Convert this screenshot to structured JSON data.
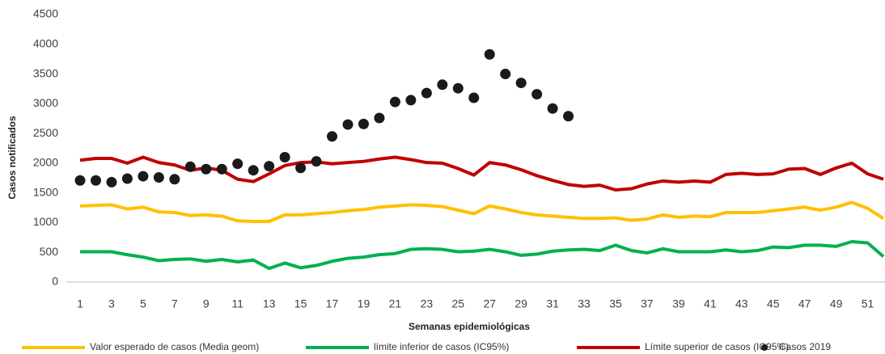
{
  "chart_data": {
    "type": "line",
    "x_label": "Semanas epidemiológicas",
    "y_label": "Casos notificados",
    "x": [
      1,
      2,
      3,
      4,
      5,
      6,
      7,
      8,
      9,
      10,
      11,
      12,
      13,
      14,
      15,
      16,
      17,
      18,
      19,
      20,
      21,
      22,
      23,
      24,
      25,
      26,
      27,
      28,
      29,
      30,
      31,
      32,
      33,
      34,
      35,
      36,
      37,
      38,
      39,
      40,
      41,
      42,
      43,
      44,
      45,
      46,
      47,
      48,
      49,
      50,
      51,
      52
    ],
    "xlim": [
      1,
      52
    ],
    "xticks": [
      1,
      3,
      5,
      7,
      9,
      11,
      13,
      15,
      17,
      19,
      21,
      23,
      25,
      27,
      29,
      31,
      33,
      35,
      37,
      39,
      41,
      43,
      45,
      47,
      49,
      51
    ],
    "ylim": [
      0,
      4500
    ],
    "yticks": [
      0,
      500,
      1000,
      1500,
      2000,
      2500,
      3000,
      3500,
      4000,
      4500
    ],
    "grid": false,
    "legend": "bottom",
    "series": [
      {
        "name": "Valor esperado de casos (Media geom)",
        "color": "#ffc000",
        "marker": "line",
        "values": [
          1280,
          1290,
          1300,
          1230,
          1260,
          1180,
          1170,
          1120,
          1130,
          1110,
          1030,
          1020,
          1020,
          1130,
          1130,
          1150,
          1170,
          1200,
          1220,
          1260,
          1280,
          1300,
          1290,
          1270,
          1210,
          1150,
          1280,
          1230,
          1170,
          1130,
          1110,
          1090,
          1070,
          1070,
          1080,
          1040,
          1060,
          1130,
          1090,
          1110,
          1100,
          1170,
          1170,
          1170,
          1200,
          1230,
          1260,
          1210,
          1260,
          1340,
          1240,
          1070
        ]
      },
      {
        "name": "límite inferior de casos (IC95%)",
        "color": "#00b050",
        "marker": "line",
        "values": [
          510,
          510,
          510,
          460,
          420,
          360,
          380,
          390,
          350,
          380,
          340,
          370,
          230,
          320,
          240,
          280,
          350,
          400,
          420,
          460,
          480,
          550,
          560,
          550,
          510,
          520,
          550,
          510,
          450,
          470,
          520,
          540,
          550,
          530,
          620,
          530,
          490,
          560,
          510,
          510,
          510,
          540,
          510,
          530,
          590,
          580,
          620,
          620,
          600,
          680,
          660,
          430
        ]
      },
      {
        "name": "Límite superior de casos (IC95%)",
        "color": "#c00000",
        "marker": "line",
        "values": [
          2050,
          2080,
          2080,
          2000,
          2100,
          2010,
          1970,
          1880,
          1920,
          1880,
          1730,
          1690,
          1820,
          1960,
          2010,
          2020,
          1990,
          2010,
          2030,
          2070,
          2100,
          2060,
          2010,
          2000,
          1910,
          1800,
          2010,
          1970,
          1890,
          1790,
          1710,
          1640,
          1610,
          1630,
          1550,
          1570,
          1650,
          1700,
          1680,
          1700,
          1680,
          1810,
          1830,
          1810,
          1820,
          1900,
          1910,
          1810,
          1920,
          2000,
          1820,
          1730
        ]
      },
      {
        "name": "Casos 2019",
        "color": "#1a1a1a",
        "marker": "dot",
        "values": [
          1710,
          1710,
          1680,
          1740,
          1780,
          1760,
          1730,
          1940,
          1900,
          1900,
          1990,
          1880,
          1950,
          2100,
          1920,
          2030,
          2450,
          2650,
          2660,
          2760,
          3030,
          3060,
          3180,
          3320,
          3260,
          3100,
          3830,
          3500,
          3350,
          3160,
          2920,
          2790,
          null,
          null,
          null,
          null,
          null,
          null,
          null,
          null,
          null,
          null,
          null,
          null,
          null,
          null,
          null,
          null,
          null,
          null,
          null,
          null
        ]
      }
    ]
  }
}
